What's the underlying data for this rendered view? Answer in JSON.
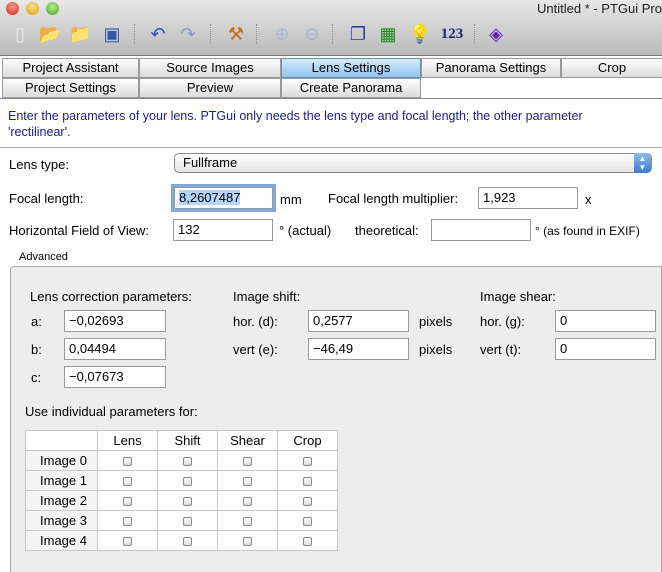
{
  "window": {
    "title": "Untitled * - PTGui Pro"
  },
  "toolbar": {
    "items": [
      "new-icon",
      "open-icon",
      "open-template-icon",
      "save-icon",
      "undo-icon",
      "redo-icon",
      "tools-icon",
      "zoom-in-icon",
      "zoom-out-icon",
      "panorama-editor-icon",
      "control-points-table-icon",
      "tips-icon",
      "123",
      "help-icon"
    ],
    "numbers_label": "123"
  },
  "tabs": {
    "row1": [
      "Project Assistant",
      "Source Images",
      "Lens Settings",
      "Panorama Settings",
      "Crop"
    ],
    "row2": [
      "Project Settings",
      "Preview",
      "Create Panorama"
    ],
    "active": "Lens Settings"
  },
  "intro": {
    "line1": "Enter the parameters of your lens. PTGui only needs the lens type and focal length; the other parameter",
    "line2": "'rectilinear'."
  },
  "lens": {
    "type_label": "Lens type:",
    "type_value": "Fullframe",
    "focal_label": "Focal length:",
    "focal_value": "8,2607487",
    "focal_unit": "mm",
    "multiplier_label": "Focal length multiplier:",
    "multiplier_value": "1,923",
    "multiplier_unit": "x",
    "hfov_label": "Horizontal Field of View:",
    "hfov_value": "132",
    "hfov_actual": "° (actual)",
    "theoretical_label": "theoretical:",
    "theoretical_value": "",
    "theoretical_unit": "° (as found in EXIF)"
  },
  "advanced": {
    "title": "Advanced",
    "correction_label": "Lens correction parameters:",
    "a_label": "a:",
    "a": "−0,02693",
    "b_label": "b:",
    "b": "0,04494",
    "c_label": "c:",
    "c": "−0,07673",
    "shift_label": "Image shift:",
    "hor_d_label": "hor. (d):",
    "hor_d": "0,2577",
    "vert_e_label": "vert (e):",
    "vert_e": "−46,49",
    "pixels": "pixels",
    "shear_label": "Image shear:",
    "hor_g_label": "hor. (g):",
    "hor_g": "0",
    "vert_t_label": "vert (t):",
    "vert_t": "0",
    "individual_label": "Use individual parameters for:",
    "columns": [
      "Lens",
      "Shift",
      "Shear",
      "Crop"
    ],
    "rows": [
      "Image 0",
      "Image 1",
      "Image 2",
      "Image 3",
      "Image 4"
    ]
  }
}
